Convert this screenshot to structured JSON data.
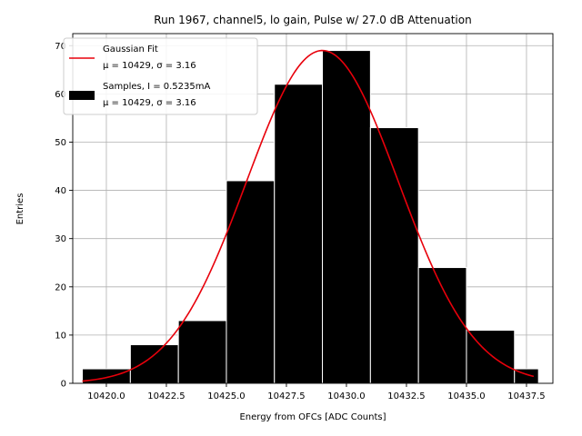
{
  "chart_data": {
    "type": "bar",
    "title": "Run 1967, channel5, lo gain, Pulse w/ 27.0 dB Attenuation",
    "xlabel": "Energy from OFCs [ADC Counts]",
    "ylabel": "Entries",
    "xlim": [
      10418.6,
      10438.6
    ],
    "ylim": [
      0,
      72.5
    ],
    "xticks": [
      10420.0,
      10422.5,
      10425.0,
      10427.5,
      10430.0,
      10432.5,
      10435.0,
      10437.5
    ],
    "xtick_labels": [
      "10420.0",
      "10422.5",
      "10425.0",
      "10427.5",
      "10430.0",
      "10432.5",
      "10435.0",
      "10437.5"
    ],
    "yticks": [
      0,
      10,
      20,
      30,
      40,
      50,
      60,
      70
    ],
    "ytick_labels": [
      "0",
      "10",
      "20",
      "30",
      "40",
      "50",
      "60",
      "70"
    ],
    "grid": true,
    "legend_position": "upper-left",
    "bin_edges": [
      10419.0,
      10421.0,
      10423.0,
      10425.0,
      10427.0,
      10429.0,
      10431.0,
      10433.0,
      10435.0,
      10437.0,
      10438.0
    ],
    "series": [
      {
        "name": "Samples, I = 0.5235mA",
        "stats": "μ = 10429, σ = 3.16",
        "kind": "histogram",
        "color": "#000000",
        "values": [
          3,
          8,
          13,
          42,
          62,
          69,
          53,
          24,
          11,
          3
        ]
      },
      {
        "name": "Gaussian Fit",
        "stats": "μ = 10429, σ = 3.16",
        "kind": "line",
        "color": "#e8000b",
        "mu": 10429,
        "sigma": 3.16,
        "amplitude": 69.0,
        "x_range": [
          10419.0,
          10437.8
        ]
      }
    ]
  }
}
